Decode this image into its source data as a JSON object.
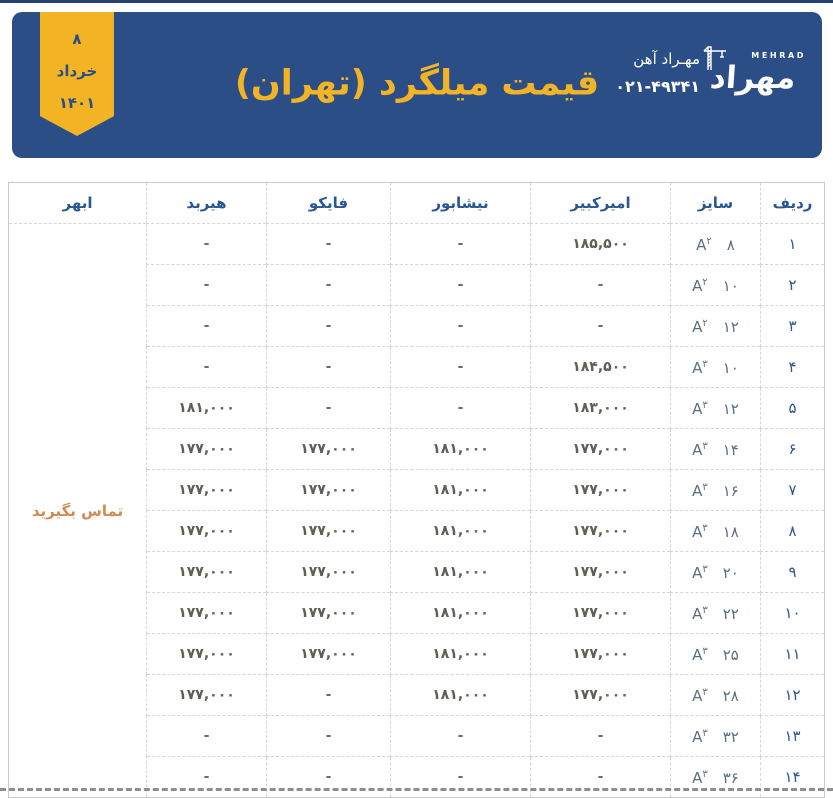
{
  "header": {
    "title": "قیمت میلگرد (تهران)",
    "ribbon": {
      "day": "۸",
      "month": "خرداد",
      "year": "۱۴۰۱"
    },
    "logo": {
      "brand_en": "MEHRAD",
      "brand_fa": "مهراد",
      "company": "مهـراد آهن",
      "phone": "۰۲۱-۴۹۳۴۱",
      "crane_icon": "construction-crane"
    }
  },
  "colors": {
    "banner_navy": "#2b4e87",
    "accent_gold": "#f2b424",
    "table_header_blue": "#2a5691",
    "contact_orange": "#cf8b52",
    "price_gray": "#615e56"
  },
  "table": {
    "columns": [
      "ردیف",
      "سایز",
      "امیرکبیر",
      "نیشابور",
      "فایکو",
      "هیربد",
      "ابهر"
    ],
    "contact_label": "تماس بگیرید",
    "empty_marker": "-",
    "rows": [
      {
        "no": "۱",
        "grade_letter": "A",
        "grade_digit": "۲",
        "size": "۸",
        "amirkabir": "۱۸۵,۵۰۰",
        "neyshabur": "-",
        "fayco": "-",
        "hirbod": "-"
      },
      {
        "no": "۲",
        "grade_letter": "A",
        "grade_digit": "۲",
        "size": "۱۰",
        "amirkabir": "-",
        "neyshabur": "-",
        "fayco": "-",
        "hirbod": "-"
      },
      {
        "no": "۳",
        "grade_letter": "A",
        "grade_digit": "۲",
        "size": "۱۲",
        "amirkabir": "-",
        "neyshabur": "-",
        "fayco": "-",
        "hirbod": "-"
      },
      {
        "no": "۴",
        "grade_letter": "A",
        "grade_digit": "۳",
        "size": "۱۰",
        "amirkabir": "۱۸۴,۵۰۰",
        "neyshabur": "-",
        "fayco": "-",
        "hirbod": "-"
      },
      {
        "no": "۵",
        "grade_letter": "A",
        "grade_digit": "۳",
        "size": "۱۲",
        "amirkabir": "۱۸۳,۰۰۰",
        "neyshabur": "-",
        "fayco": "-",
        "hirbod": "۱۸۱,۰۰۰"
      },
      {
        "no": "۶",
        "grade_letter": "A",
        "grade_digit": "۳",
        "size": "۱۴",
        "amirkabir": "۱۷۷,۰۰۰",
        "neyshabur": "۱۸۱,۰۰۰",
        "fayco": "۱۷۷,۰۰۰",
        "hirbod": "۱۷۷,۰۰۰"
      },
      {
        "no": "۷",
        "grade_letter": "A",
        "grade_digit": "۳",
        "size": "۱۶",
        "amirkabir": "۱۷۷,۰۰۰",
        "neyshabur": "۱۸۱,۰۰۰",
        "fayco": "۱۷۷,۰۰۰",
        "hirbod": "۱۷۷,۰۰۰"
      },
      {
        "no": "۸",
        "grade_letter": "A",
        "grade_digit": "۳",
        "size": "۱۸",
        "amirkabir": "۱۷۷,۰۰۰",
        "neyshabur": "۱۸۱,۰۰۰",
        "fayco": "۱۷۷,۰۰۰",
        "hirbod": "۱۷۷,۰۰۰"
      },
      {
        "no": "۹",
        "grade_letter": "A",
        "grade_digit": "۳",
        "size": "۲۰",
        "amirkabir": "۱۷۷,۰۰۰",
        "neyshabur": "۱۸۱,۰۰۰",
        "fayco": "۱۷۷,۰۰۰",
        "hirbod": "۱۷۷,۰۰۰"
      },
      {
        "no": "۱۰",
        "grade_letter": "A",
        "grade_digit": "۳",
        "size": "۲۲",
        "amirkabir": "۱۷۷,۰۰۰",
        "neyshabur": "۱۸۱,۰۰۰",
        "fayco": "۱۷۷,۰۰۰",
        "hirbod": "۱۷۷,۰۰۰"
      },
      {
        "no": "۱۱",
        "grade_letter": "A",
        "grade_digit": "۳",
        "size": "۲۵",
        "amirkabir": "۱۷۷,۰۰۰",
        "neyshabur": "۱۸۱,۰۰۰",
        "fayco": "۱۷۷,۰۰۰",
        "hirbod": "۱۷۷,۰۰۰"
      },
      {
        "no": "۱۲",
        "grade_letter": "A",
        "grade_digit": "۳",
        "size": "۲۸",
        "amirkabir": "۱۷۷,۰۰۰",
        "neyshabur": "۱۸۱,۰۰۰",
        "fayco": "-",
        "hirbod": "۱۷۷,۰۰۰"
      },
      {
        "no": "۱۳",
        "grade_letter": "A",
        "grade_digit": "۳",
        "size": "۳۲",
        "amirkabir": "-",
        "neyshabur": "-",
        "fayco": "-",
        "hirbod": "-"
      },
      {
        "no": "۱۴",
        "grade_letter": "A",
        "grade_digit": "۳",
        "size": "۳۶",
        "amirkabir": "-",
        "neyshabur": "-",
        "fayco": "-",
        "hirbod": "-"
      }
    ]
  }
}
